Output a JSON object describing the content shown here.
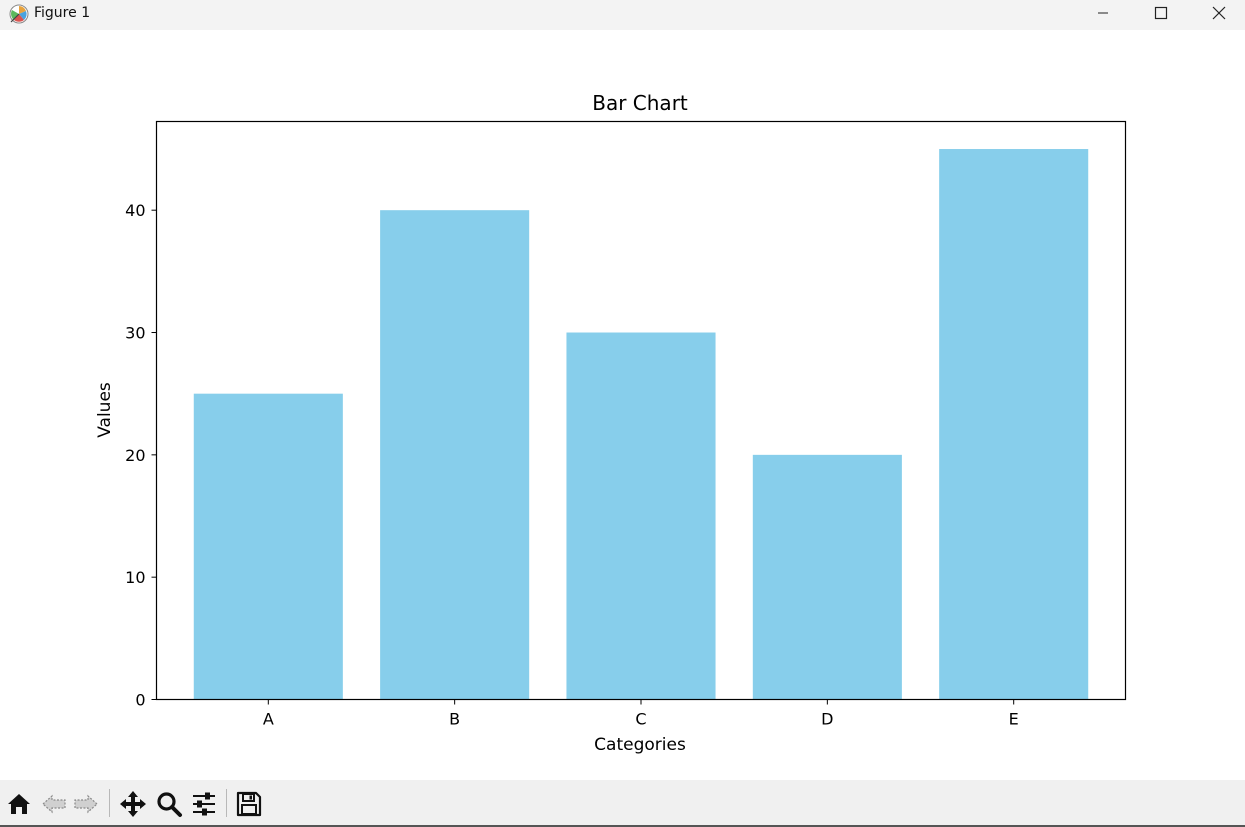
{
  "window": {
    "title": "Figure 1"
  },
  "icons": {
    "app": "matplotlib-figure-icon",
    "minimize": "minimize-icon",
    "maximize": "maximize-icon",
    "close": "close-icon"
  },
  "toolbar": {
    "tools": [
      {
        "name": "home-button",
        "icon": "home-icon"
      },
      {
        "name": "back-button",
        "icon": "back-arrow-icon"
      },
      {
        "name": "forward-button",
        "icon": "forward-arrow-icon"
      },
      {
        "name": "pan-button",
        "icon": "move-icon"
      },
      {
        "name": "zoom-button",
        "icon": "zoom-icon"
      },
      {
        "name": "configure-subplots-button",
        "icon": "sliders-icon"
      },
      {
        "name": "save-button",
        "icon": "save-icon"
      }
    ]
  },
  "chart_data": {
    "type": "bar",
    "title": "Bar Chart",
    "xlabel": "Categories",
    "ylabel": "Values",
    "categories": [
      "A",
      "B",
      "C",
      "D",
      "E"
    ],
    "values": [
      25,
      40,
      30,
      20,
      45
    ],
    "ylim": [
      0,
      47.25
    ],
    "yticks": [
      0,
      10,
      20,
      30,
      40
    ],
    "bar_color": "#87ceeb",
    "grid": false,
    "legend": "none"
  }
}
